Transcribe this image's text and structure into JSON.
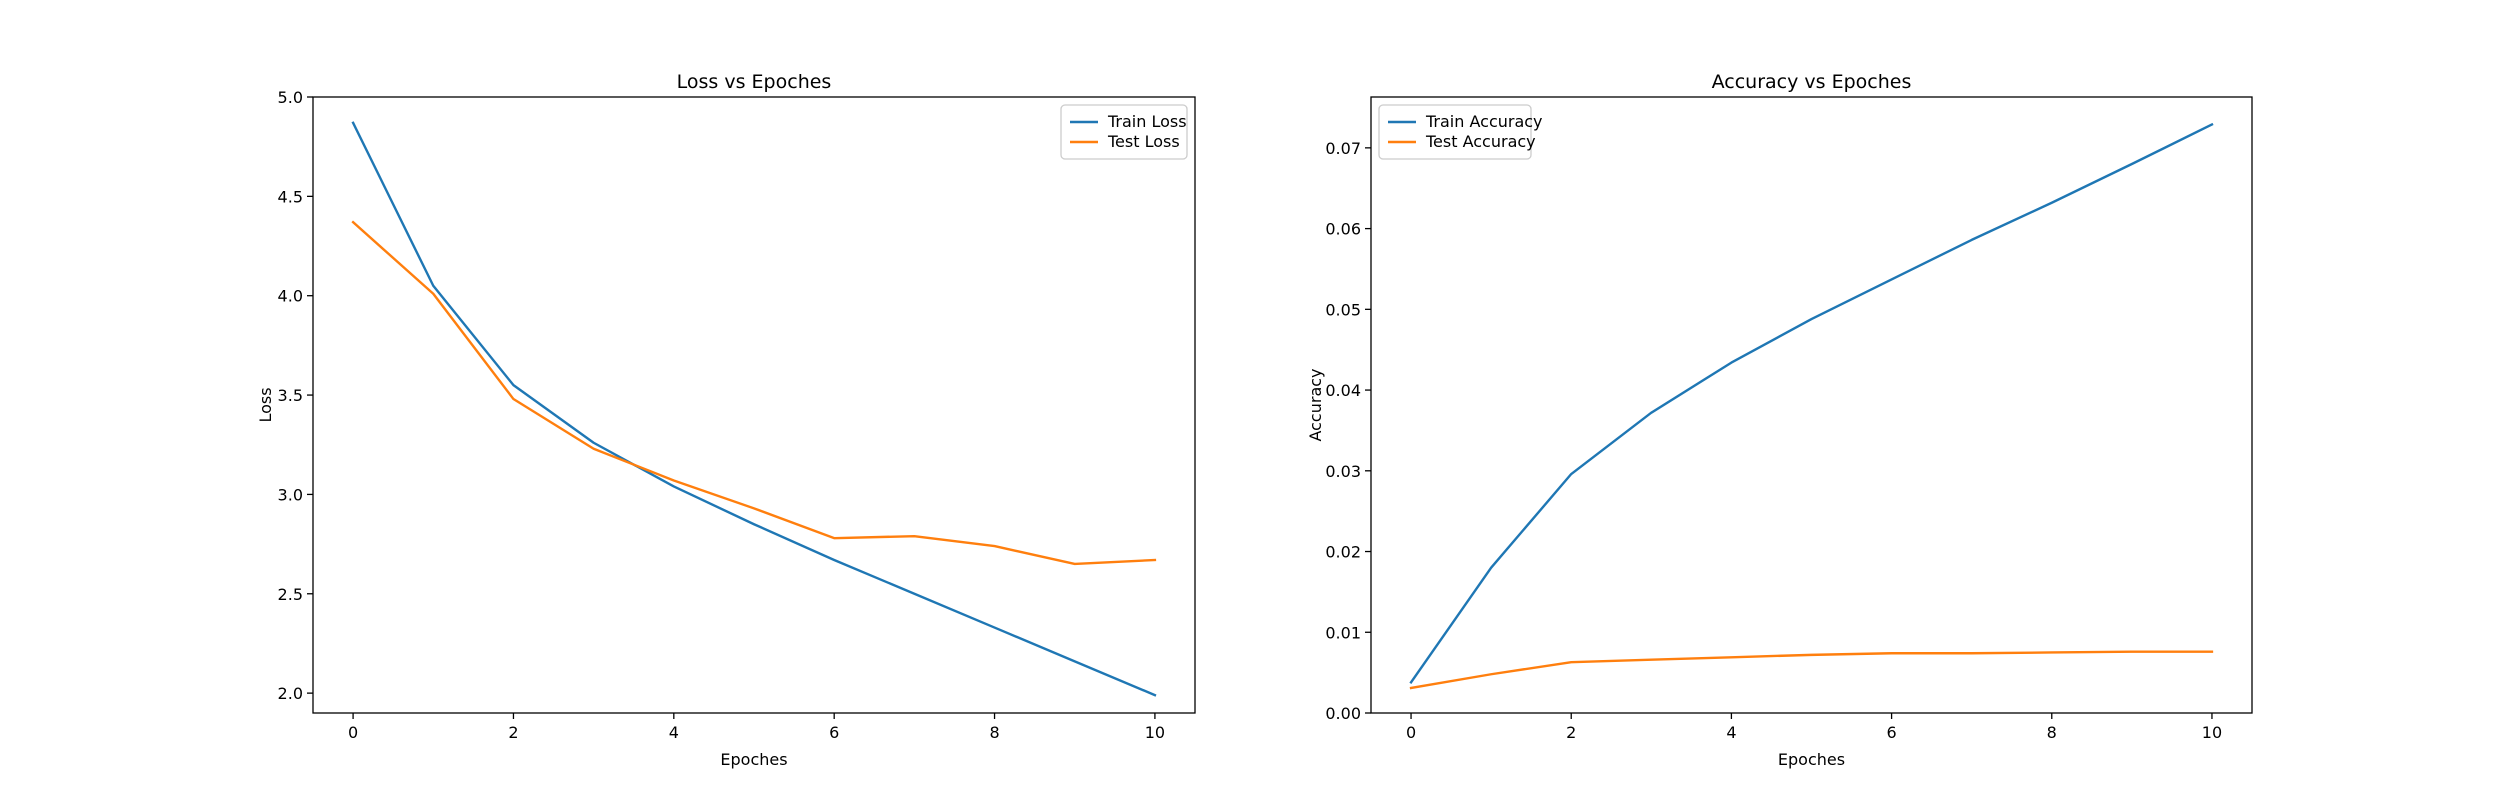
{
  "chart_data": [
    {
      "type": "line",
      "title": "Loss vs Epoches",
      "xlabel": "Epoches",
      "ylabel": "Loss",
      "xlim": [
        -0.5,
        10.5
      ],
      "ylim": [
        1.9,
        5.0
      ],
      "xticks": [
        0,
        2,
        4,
        6,
        8,
        10
      ],
      "xtick_labels": [
        "0",
        "2",
        "4",
        "6",
        "8",
        "10"
      ],
      "yticks": [
        2.0,
        2.5,
        3.0,
        3.5,
        4.0,
        4.5,
        5.0
      ],
      "ytick_labels": [
        "2.0",
        "2.5",
        "3.0",
        "3.5",
        "4.0",
        "4.5",
        "5.0"
      ],
      "legend_position": "top-right",
      "grid": false,
      "x": [
        0,
        1,
        2,
        3,
        4,
        5,
        6,
        7,
        8,
        9,
        10
      ],
      "series": [
        {
          "name": "Train Loss",
          "color": "#1f77b4",
          "values": [
            4.87,
            4.05,
            3.55,
            3.26,
            3.04,
            2.85,
            2.67,
            2.5,
            2.33,
            2.16,
            1.99
          ]
        },
        {
          "name": "Test Loss",
          "color": "#ff7f0e",
          "values": [
            4.37,
            4.01,
            3.48,
            3.23,
            3.07,
            2.93,
            2.78,
            2.79,
            2.74,
            2.65,
            2.67
          ]
        }
      ]
    },
    {
      "type": "line",
      "title": "Accuracy vs Epoches",
      "xlabel": "Epoches",
      "ylabel": "Accuracy",
      "xlim": [
        -0.5,
        10.5
      ],
      "ylim": [
        0.0,
        0.0763
      ],
      "xticks": [
        0,
        2,
        4,
        6,
        8,
        10
      ],
      "xtick_labels": [
        "0",
        "2",
        "4",
        "6",
        "8",
        "10"
      ],
      "yticks": [
        0.0,
        0.01,
        0.02,
        0.03,
        0.04,
        0.05,
        0.06,
        0.07
      ],
      "ytick_labels": [
        "0.00",
        "0.01",
        "0.02",
        "0.03",
        "0.04",
        "0.05",
        "0.06",
        "0.07"
      ],
      "legend_position": "top-left",
      "grid": false,
      "x": [
        0,
        1,
        2,
        3,
        4,
        5,
        6,
        7,
        8,
        9,
        10
      ],
      "series": [
        {
          "name": "Train Accuracy",
          "color": "#1f77b4",
          "values": [
            0.0038,
            0.018,
            0.0296,
            0.0372,
            0.0434,
            0.0488,
            0.0537,
            0.0586,
            0.0632,
            0.068,
            0.0729
          ]
        },
        {
          "name": "Test Accuracy",
          "color": "#ff7f0e",
          "values": [
            0.0031,
            0.0048,
            0.0063,
            0.0066,
            0.0069,
            0.0072,
            0.0074,
            0.0074,
            0.0075,
            0.0076,
            0.0076
          ]
        }
      ]
    }
  ]
}
